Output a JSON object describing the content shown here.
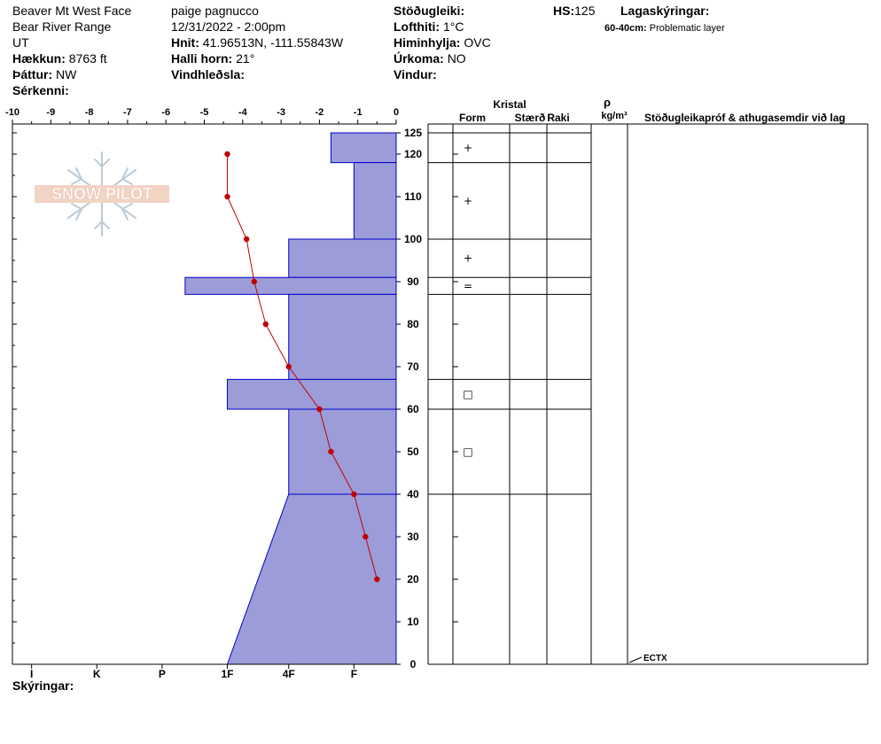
{
  "header": {
    "location": "Beaver Mt West Face",
    "range": "Bear River Range",
    "state": "UT",
    "elevation_label": "Hækkun:",
    "elevation": "8763 ft",
    "aspect_label": "Þáttur:",
    "aspect": "NW",
    "specifics_label": "Sérkenni:",
    "observer": "paige pagnucco",
    "datetime": "12/31/2022 - 2:00pm",
    "coords_label": "Hnit:",
    "coords": "41.96513N, -111.55843W",
    "slope_label": "Halli horn:",
    "slope": "21°",
    "wind_loading_label": "Vindhleðsla:",
    "stability_label": "Stöðugleiki:",
    "air_temp_label": "Lofthiti:",
    "air_temp": "1°C",
    "sky_label": "Himinhylja:",
    "sky": "OVC",
    "precip_label": "Úrkoma:",
    "precip": "NO",
    "wind_label": "Vindur:",
    "hs_label": "HS:",
    "hs": "125",
    "legend_label": "Lagaskýringar:",
    "legend_item_range": "60-40cm:",
    "legend_item_text": "Problematic layer"
  },
  "footer": {
    "notes_label": "Skýringar:"
  },
  "watermark": {
    "logo_text": "SNOW PILOT"
  },
  "table_headers": {
    "crystal": "Kristal",
    "form": "Form",
    "size": "Stærð",
    "moisture": "Raki",
    "density_symbol": "ρ",
    "density_unit": "kg/m³",
    "comments": "Stöðugleikapróf & athugasemdir við lag"
  },
  "colors": {
    "layer_fill": "#9c9cd9",
    "layer_stroke": "#0000cc",
    "temp_line": "#c00000"
  },
  "chart_data": {
    "type": "snow_profile",
    "temp_axis": {
      "ticks": [
        -10,
        -9,
        -8,
        -7,
        -6,
        -5,
        -4,
        -3,
        -2,
        -1,
        0
      ],
      "range": [
        -10,
        0
      ]
    },
    "depth_axis": {
      "ticks": [
        0,
        10,
        20,
        30,
        40,
        50,
        60,
        70,
        80,
        90,
        100,
        110,
        120,
        125
      ],
      "range": [
        0,
        125
      ]
    },
    "hardness_labels": [
      "I",
      "K",
      "P",
      "1F",
      "4F",
      "F"
    ],
    "layers": [
      {
        "top": 125,
        "bottom": 118,
        "hardness_top": 1.7,
        "hardness_bottom": 1.7
      },
      {
        "top": 118,
        "bottom": 100,
        "hardness_top": 1.1,
        "hardness_bottom": 1.1
      },
      {
        "top": 100,
        "bottom": 91,
        "hardness_top": 2.8,
        "hardness_bottom": 2.8
      },
      {
        "top": 91,
        "bottom": 87,
        "hardness_top": 5.5,
        "hardness_bottom": 5.5
      },
      {
        "top": 87,
        "bottom": 67,
        "hardness_top": 2.8,
        "hardness_bottom": 2.8
      },
      {
        "top": 67,
        "bottom": 60,
        "hardness_top": 4.4,
        "hardness_bottom": 4.4
      },
      {
        "top": 60,
        "bottom": 40,
        "hardness_top": 2.8,
        "hardness_bottom": 2.8
      },
      {
        "top": 40,
        "bottom": 0,
        "hardness_top": 2.8,
        "hardness_bottom": 4.4
      }
    ],
    "temperature_profile": [
      {
        "depth": 120,
        "temp": -4.4
      },
      {
        "depth": 110,
        "temp": -4.4
      },
      {
        "depth": 100,
        "temp": -3.9
      },
      {
        "depth": 90,
        "temp": -3.7
      },
      {
        "depth": 80,
        "temp": -3.4
      },
      {
        "depth": 70,
        "temp": -2.8
      },
      {
        "depth": 60,
        "temp": -2.0
      },
      {
        "depth": 50,
        "temp": -1.7
      },
      {
        "depth": 40,
        "temp": -1.1
      },
      {
        "depth": 30,
        "temp": -0.8
      },
      {
        "depth": 20,
        "temp": -0.5
      }
    ],
    "grain_forms": [
      {
        "depth": 121.5,
        "symbol": "+"
      },
      {
        "depth": 109,
        "symbol": "+"
      },
      {
        "depth": 95.5,
        "symbol": "+"
      },
      {
        "depth": 89,
        "symbol": "="
      },
      {
        "depth": 63.5,
        "symbol": "□"
      },
      {
        "depth": 50,
        "symbol": "□"
      }
    ],
    "test_results": [
      {
        "depth": 0,
        "label": "ECTX"
      }
    ]
  }
}
